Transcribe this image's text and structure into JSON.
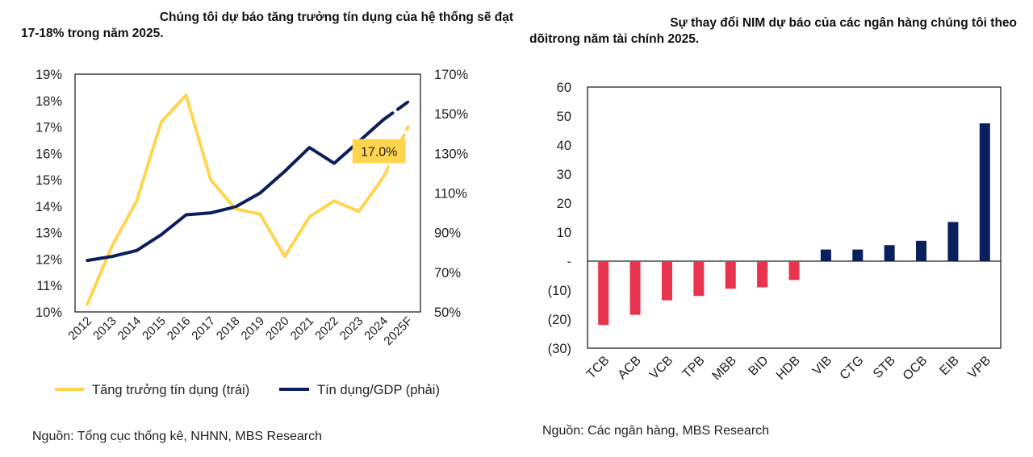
{
  "left": {
    "title_line1": "Chúng tôi dự báo tăng trưởng tín dụng của hệ thống sẽ đạt",
    "title_line2": "17-18% trong năm 2025.",
    "source": "Nguồn: Tổng cục thống kê, NHNN, MBS Research"
  },
  "right": {
    "title_line1": "Sự thay đổi NIM dự báo của các ngân hàng chúng tôi theo",
    "title_line2": "dõitrong năm tài chính 2025.",
    "source": "Nguồn: Các ngân hàng, MBS Research"
  },
  "colors": {
    "yellow": "#FFD54F",
    "navy": "#0B1F5C",
    "red": "#E8344E"
  },
  "chart_data": [
    {
      "type": "line",
      "categories": [
        "2012",
        "2013",
        "2014",
        "2015",
        "2016",
        "2017",
        "2018",
        "2019",
        "2020",
        "2021",
        "2022",
        "2023",
        "2024",
        "2025F"
      ],
      "series": [
        {
          "name": "Tăng trưởng tín dụng (trái)",
          "axis": "left",
          "values": [
            10.3,
            12.5,
            14.2,
            17.2,
            18.2,
            15.0,
            13.9,
            13.7,
            12.1,
            13.6,
            14.2,
            13.8,
            15.1,
            17.0
          ]
        },
        {
          "name": "Tín dụng/GDP (phải)",
          "axis": "right",
          "values": [
            76,
            78,
            81,
            89,
            99,
            100,
            103,
            110,
            121,
            133,
            125,
            136,
            147,
            156
          ]
        }
      ],
      "left_axis": {
        "min": 10,
        "max": 19,
        "ticks": [
          "10%",
          "11%",
          "12%",
          "13%",
          "14%",
          "15%",
          "16%",
          "17%",
          "18%",
          "19%"
        ]
      },
      "right_axis": {
        "min": 50,
        "max": 170,
        "ticks": [
          "50%",
          "70%",
          "90%",
          "110%",
          "130%",
          "150%",
          "170%"
        ]
      },
      "annotation": "17.0%",
      "legend": [
        "Tăng trưởng tín dụng (trái)",
        "Tín dụng/GDP (phải)"
      ]
    },
    {
      "type": "bar",
      "categories": [
        "TCB",
        "ACB",
        "VCB",
        "TPB",
        "MBB",
        "BID",
        "HDB",
        "VIB",
        "CTG",
        "STB",
        "OCB",
        "EIB",
        "VPB"
      ],
      "values": [
        -22,
        -18.5,
        -13.5,
        -12,
        -9.5,
        -9,
        -6.5,
        4,
        4,
        5.5,
        7,
        13.5,
        47.5
      ],
      "ylim": [
        -30,
        60
      ],
      "y_ticks": [
        "(30)",
        "(20)",
        "(10)",
        "-",
        "10",
        "20",
        "30",
        "40",
        "50",
        "60"
      ]
    }
  ]
}
